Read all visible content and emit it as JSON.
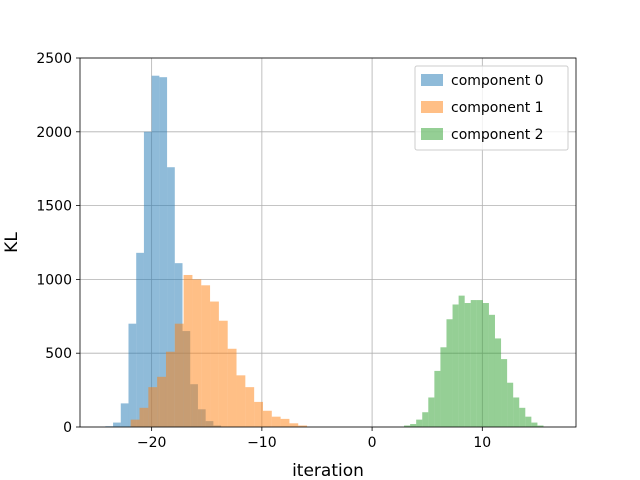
{
  "chart_data": {
    "type": "histogram",
    "title": "",
    "xlabel": "iteration",
    "ylabel": "KL",
    "xlim": [
      -26.5,
      18.5
    ],
    "ylim": [
      0,
      2500
    ],
    "xticks": [
      -20,
      -10,
      0,
      10
    ],
    "yticks": [
      0,
      500,
      1000,
      1500,
      2000,
      2500
    ],
    "grid": true,
    "legend_position": "top-right",
    "series": [
      {
        "name": "component 0",
        "color": "#1f77b4",
        "opacity": 0.5,
        "bin_width": 0.7,
        "bins": [
          {
            "x0": -24.2,
            "count": 5
          },
          {
            "x0": -23.5,
            "count": 30
          },
          {
            "x0": -22.8,
            "count": 160
          },
          {
            "x0": -22.1,
            "count": 700
          },
          {
            "x0": -21.4,
            "count": 1180
          },
          {
            "x0": -20.7,
            "count": 2000
          },
          {
            "x0": -20.0,
            "count": 2380
          },
          {
            "x0": -19.3,
            "count": 2370
          },
          {
            "x0": -18.6,
            "count": 1760
          },
          {
            "x0": -17.9,
            "count": 1110
          },
          {
            "x0": -17.2,
            "count": 650
          },
          {
            "x0": -16.5,
            "count": 290
          },
          {
            "x0": -15.8,
            "count": 120
          },
          {
            "x0": -15.1,
            "count": 40
          },
          {
            "x0": -14.4,
            "count": 10
          }
        ]
      },
      {
        "name": "component 1",
        "color": "#ff7f0e",
        "opacity": 0.5,
        "bin_width": 0.8,
        "bins": [
          {
            "x0": -21.9,
            "count": 50
          },
          {
            "x0": -21.1,
            "count": 130
          },
          {
            "x0": -20.3,
            "count": 270
          },
          {
            "x0": -19.5,
            "count": 340
          },
          {
            "x0": -18.7,
            "count": 510
          },
          {
            "x0": -17.9,
            "count": 700
          },
          {
            "x0": -17.1,
            "count": 1030
          },
          {
            "x0": -16.3,
            "count": 1000
          },
          {
            "x0": -15.5,
            "count": 960
          },
          {
            "x0": -14.7,
            "count": 850
          },
          {
            "x0": -13.9,
            "count": 720
          },
          {
            "x0": -13.1,
            "count": 530
          },
          {
            "x0": -12.3,
            "count": 350
          },
          {
            "x0": -11.5,
            "count": 270
          },
          {
            "x0": -10.7,
            "count": 170
          },
          {
            "x0": -9.9,
            "count": 110
          },
          {
            "x0": -9.1,
            "count": 70
          },
          {
            "x0": -8.3,
            "count": 55
          },
          {
            "x0": -7.5,
            "count": 25
          },
          {
            "x0": -6.7,
            "count": 10
          }
        ]
      },
      {
        "name": "component 2",
        "color": "#2ca02c",
        "opacity": 0.5,
        "bin_width": 0.55,
        "bins": [
          {
            "x0": 2.9,
            "count": 10
          },
          {
            "x0": 3.45,
            "count": 20
          },
          {
            "x0": 4.0,
            "count": 50
          },
          {
            "x0": 4.55,
            "count": 100
          },
          {
            "x0": 5.1,
            "count": 200
          },
          {
            "x0": 5.65,
            "count": 380
          },
          {
            "x0": 6.2,
            "count": 540
          },
          {
            "x0": 6.75,
            "count": 730
          },
          {
            "x0": 7.3,
            "count": 830
          },
          {
            "x0": 7.85,
            "count": 890
          },
          {
            "x0": 8.4,
            "count": 840
          },
          {
            "x0": 8.95,
            "count": 860
          },
          {
            "x0": 9.5,
            "count": 860
          },
          {
            "x0": 10.05,
            "count": 840
          },
          {
            "x0": 10.6,
            "count": 760
          },
          {
            "x0": 11.15,
            "count": 600
          },
          {
            "x0": 11.7,
            "count": 460
          },
          {
            "x0": 12.25,
            "count": 300
          },
          {
            "x0": 12.8,
            "count": 200
          },
          {
            "x0": 13.35,
            "count": 130
          },
          {
            "x0": 13.9,
            "count": 70
          },
          {
            "x0": 14.45,
            "count": 30
          },
          {
            "x0": 15.0,
            "count": 10
          }
        ]
      }
    ]
  }
}
